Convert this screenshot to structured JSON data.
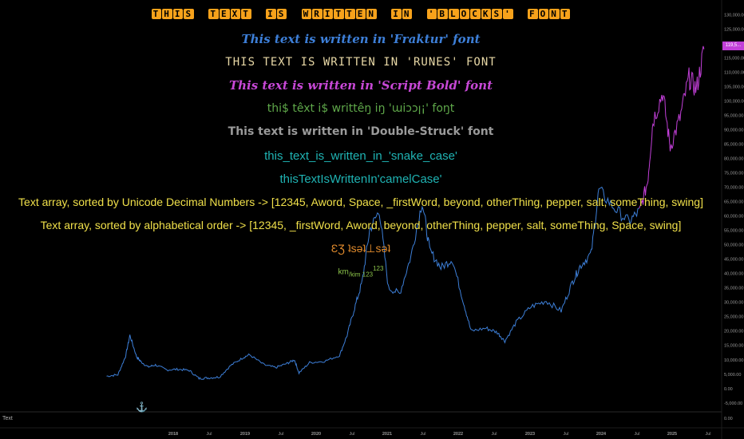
{
  "overlay": {
    "blocks": "THIS TEXT IS WRITTEN IN 'BLOCKS' FONT",
    "fraktur": "This text is written in 'Fraktur' font",
    "runes": "THIS TEXT IS WRITTEN IN 'RUNES' FONT",
    "script_bold": "This text is written in 'Script Bold' font",
    "weird": "thi$ têxt i$ writtêŋ iŋ 'ɯiɔɔן¡' foŋt",
    "double_struck": "This text is written in 'Double-Struck' font",
    "snake_case": "this_text_is_written_in_'snake_case'",
    "camel_case": "thisTextIsWrittenIn'camelCase'",
    "sorted_unicode": "Text array, sorted by Unicode Decimal Numbers -> [12345, Aword, Space, _firstWord, beyond, otherThing, pepper, salt, someThing, swing]",
    "sorted_alpha": "Text array, sorted by alphabetical order -> [12345, _firstWord, Aword, beyond, otherThing, pepper, salt, someThing, Space, swing]",
    "upside_down": "ƐƷ ʇsǝʇ⊥sǝʇ",
    "unit_main": "km",
    "unit_sub": "/kim 123",
    "unit_sup": "123"
  },
  "pane": {
    "label": "Text",
    "zero_label": "0.00"
  },
  "price_badge": "119,5...",
  "colors": {
    "background": "#000000",
    "price_line": "#3d7fd8",
    "price_line_recent": "#c23fd8",
    "axis_text": "#9a9a9a"
  },
  "icons": {
    "logo": "tradingview-logo-icon"
  },
  "chart_data": {
    "type": "line",
    "title": "",
    "xlabel": "",
    "ylabel": "",
    "x_ticks": [
      "2018",
      "Jul",
      "2019",
      "Jul",
      "2020",
      "Jul",
      "2021",
      "Jul",
      "2022",
      "Jul",
      "2023",
      "Jul",
      "2024",
      "Jul",
      "2025",
      "Jul"
    ],
    "y_ticks": [
      130000,
      125000,
      120000,
      115000,
      110000,
      105000,
      100000,
      95000,
      90000,
      85000,
      80000,
      75000,
      70000,
      65000,
      60000,
      55000,
      50000,
      45000,
      40000,
      35000,
      30000,
      25000,
      20000,
      15000,
      10000,
      5000,
      0,
      -5000
    ],
    "y_tick_labels": [
      "130,000.00",
      "125,000.00",
      "120,000.00",
      "115,000.00",
      "110,000.00",
      "105,000.00",
      "100,000.00",
      "95,000.00",
      "90,000.00",
      "85,000.00",
      "80,000.00",
      "75,000.00",
      "70,000.00",
      "65,000.00",
      "60,000.00",
      "55,000.00",
      "50,000.00",
      "45,000.00",
      "40,000.00",
      "35,000.00",
      "30,000.00",
      "25,000.00",
      "20,000.00",
      "15,000.00",
      "10,000.00",
      "5,000.00",
      "0.00",
      "-5,000.00"
    ],
    "ylim": [
      -7000,
      134000
    ],
    "x": [
      2017.65,
      2017.8,
      2017.9,
      2017.96,
      2018.05,
      2018.1,
      2018.2,
      2018.3,
      2018.45,
      2018.6,
      2018.75,
      2018.88,
      2019.0,
      2019.15,
      2019.3,
      2019.45,
      2019.55,
      2019.75,
      2019.9,
      2020.05,
      2020.15,
      2020.21,
      2020.35,
      2020.55,
      2020.75,
      2020.85,
      2020.95,
      2021.05,
      2021.15,
      2021.28,
      2021.4,
      2021.55,
      2021.7,
      2021.85,
      2021.95,
      2022.1,
      2022.25,
      2022.4,
      2022.5,
      2022.7,
      2022.85,
      2022.95,
      2023.1,
      2023.3,
      2023.5,
      2023.7,
      2023.85,
      2023.95,
      2024.1,
      2024.2,
      2024.4,
      2024.6,
      2024.75,
      2024.85,
      2024.92,
      2025.05,
      2025.15,
      2025.28,
      2025.4,
      2025.5,
      2025.6
    ],
    "values": [
      4300,
      4800,
      11000,
      18500,
      11000,
      9500,
      7500,
      8200,
      6500,
      6700,
      6300,
      3500,
      3700,
      4000,
      8000,
      10500,
      11800,
      8200,
      7300,
      8700,
      10000,
      5400,
      9000,
      9500,
      11500,
      18500,
      28000,
      37000,
      55000,
      62000,
      35000,
      33000,
      46000,
      65000,
      48000,
      42000,
      45000,
      30000,
      20000,
      21000,
      19500,
      16500,
      23000,
      28500,
      30500,
      27000,
      37000,
      42500,
      47000,
      69000,
      63000,
      58000,
      62000,
      72000,
      93000,
      103000,
      84000,
      94000,
      108000,
      104000,
      118000
    ],
    "series_split_index": 52,
    "grid": false
  }
}
